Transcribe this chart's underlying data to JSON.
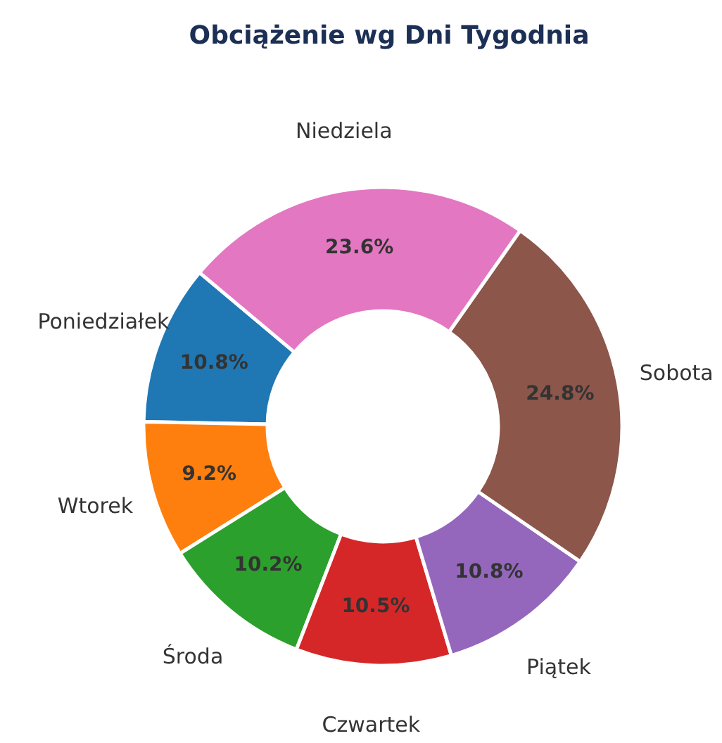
{
  "chart_data": {
    "type": "donut",
    "title": "Obciążenie wg Dni Tygodnia",
    "categories": [
      "Poniedziałek",
      "Wtorek",
      "Środa",
      "Czwartek",
      "Piątek",
      "Sobota",
      "Niedziela"
    ],
    "values": [
      10.8,
      9.2,
      10.2,
      10.5,
      10.8,
      24.8,
      23.6
    ],
    "value_labels": [
      "10.8%",
      "9.2%",
      "10.2%",
      "10.5%",
      "10.8%",
      "24.8%",
      "23.6%"
    ],
    "colors": [
      "#1f77b4",
      "#ff7f0e",
      "#2ca02c",
      "#d62728",
      "#9467bd",
      "#8c564b",
      "#e377c2"
    ],
    "legend": false
  }
}
